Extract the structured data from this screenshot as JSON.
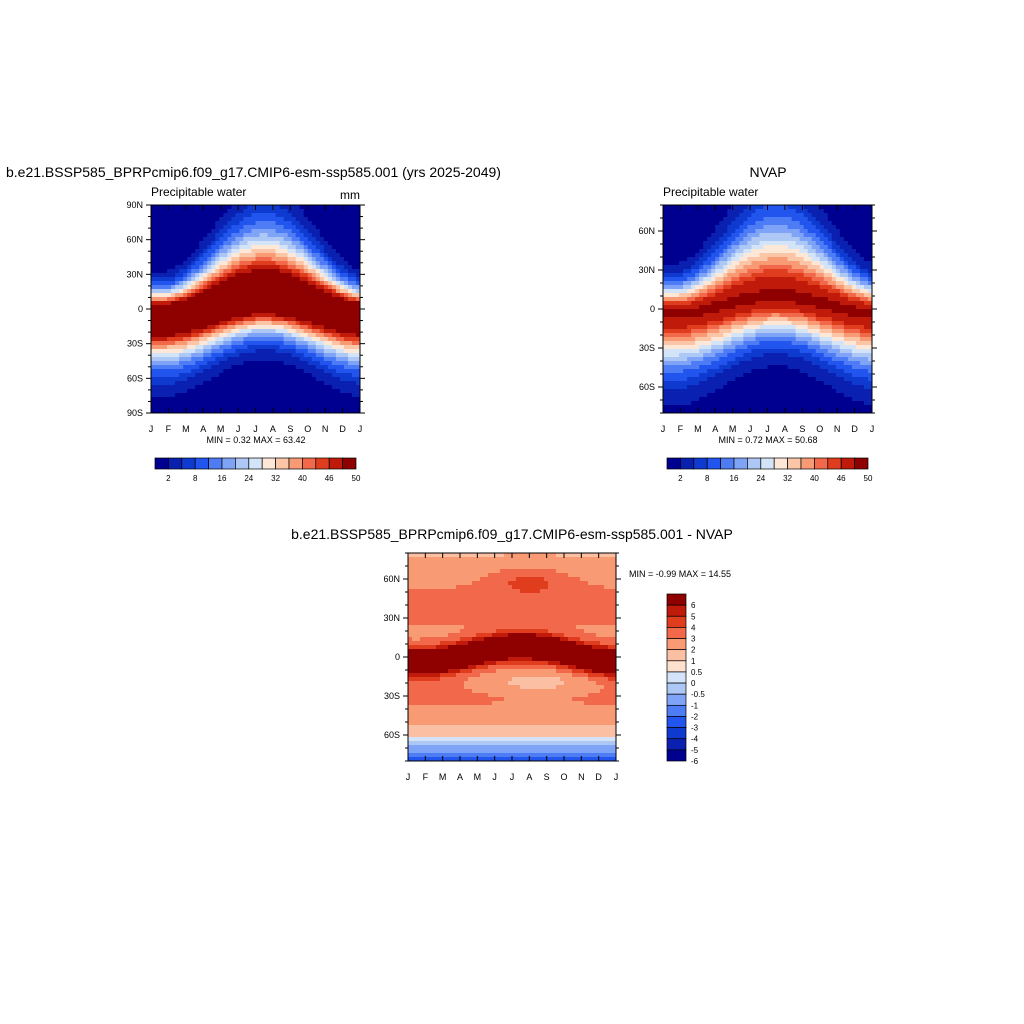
{
  "colors": {
    "full_field_levels": [
      "#000090",
      "#0a20b0",
      "#0f3ad0",
      "#2255ee",
      "#4d7cf5",
      "#7fa4f7",
      "#aec8f5",
      "#d4e4f8",
      "#fde8d8",
      "#fbc6a8",
      "#f89b75",
      "#f2684a",
      "#e03c1e",
      "#c01a0a",
      "#8f0000"
    ],
    "difference_levels": [
      "#000090",
      "#0a20b0",
      "#0f3ad0",
      "#2255ee",
      "#4d7cf5",
      "#7fa4f7",
      "#aec8f5",
      "#d4e4f8",
      "#fde0cd",
      "#fbc0a3",
      "#f89b75",
      "#f2684a",
      "#e03c1e",
      "#c01a0a",
      "#8f0000"
    ]
  },
  "panels": {
    "model": {
      "title": "b.e21.BSSP585_BPRPcmip6.f09_g17.CMIP6-esm-ssp585.001 (yrs 2025-2049)",
      "left_label": "Precipitable water",
      "right_label": "mm",
      "stats": "MIN =   0.32 MAX =  63.42"
    },
    "obs": {
      "title": "NVAP",
      "left_label": "Precipitable water",
      "stats": "MIN =   0.72 MAX =  50.68"
    },
    "diff": {
      "title": "b.e21.BSSP585_BPRPcmip6.f09_g17.CMIP6-esm-ssp585.001 - NVAP",
      "stats": "MIN =  -0.99 MAX =  14.55"
    }
  },
  "chart_data": [
    {
      "id": "model",
      "type": "heatmap",
      "title": "b.e21.BSSP585_BPRPcmip6.f09_g17.CMIP6-esm-ssp585.001 (yrs 2025-2049)",
      "variable": "Precipitable water",
      "units": "mm",
      "x": [
        "J",
        "F",
        "M",
        "A",
        "M",
        "J",
        "J",
        "A",
        "S",
        "O",
        "N",
        "D",
        "J"
      ],
      "y_ticks": [
        "90N",
        "60N",
        "30N",
        "0",
        "30S",
        "60S",
        "90S"
      ],
      "ylim": [
        -90,
        90
      ],
      "field": {
        "itcz_lat_mean": 2,
        "itcz_lat_amp": 7,
        "itcz_peak_month": 6.5,
        "peak_value": 63.42,
        "min_value": 0.32
      },
      "min": 0.32,
      "max": 63.42,
      "colorbar_labels": [
        "2",
        "8",
        "16",
        "24",
        "32",
        "40",
        "46",
        "50"
      ]
    },
    {
      "id": "obs",
      "type": "heatmap",
      "title": "NVAP",
      "variable": "Precipitable water",
      "x": [
        "J",
        "F",
        "M",
        "A",
        "M",
        "J",
        "J",
        "A",
        "S",
        "O",
        "N",
        "D",
        "J"
      ],
      "y_ticks": [
        "60N",
        "30N",
        "0",
        "30S",
        "60S"
      ],
      "ylim": [
        -80,
        80
      ],
      "field": {
        "itcz_lat_mean": 3,
        "itcz_lat_amp": 6,
        "itcz_peak_month": 6.5,
        "peak_value": 50.68,
        "min_value": 0.72
      },
      "min": 0.72,
      "max": 50.68,
      "colorbar_labels": [
        "2",
        "8",
        "16",
        "24",
        "32",
        "40",
        "46",
        "50"
      ]
    },
    {
      "id": "diff",
      "type": "heatmap",
      "title": "b.e21.BSSP585_BPRPcmip6.f09_g17.CMIP6-esm-ssp585.001 - NVAP",
      "x": [
        "J",
        "F",
        "M",
        "A",
        "M",
        "J",
        "J",
        "A",
        "S",
        "O",
        "N",
        "D",
        "J"
      ],
      "y_ticks": [
        "60N",
        "30N",
        "0",
        "30S",
        "60S"
      ],
      "ylim": [
        -80,
        80
      ],
      "min": -0.99,
      "max": 14.55,
      "colorbar_labels": [
        "6",
        "5",
        "4",
        "3",
        "2",
        "1",
        "0.5",
        "0",
        "-0.5",
        "-1",
        "-2",
        "-3",
        "-4",
        "-5",
        "-6"
      ]
    }
  ]
}
